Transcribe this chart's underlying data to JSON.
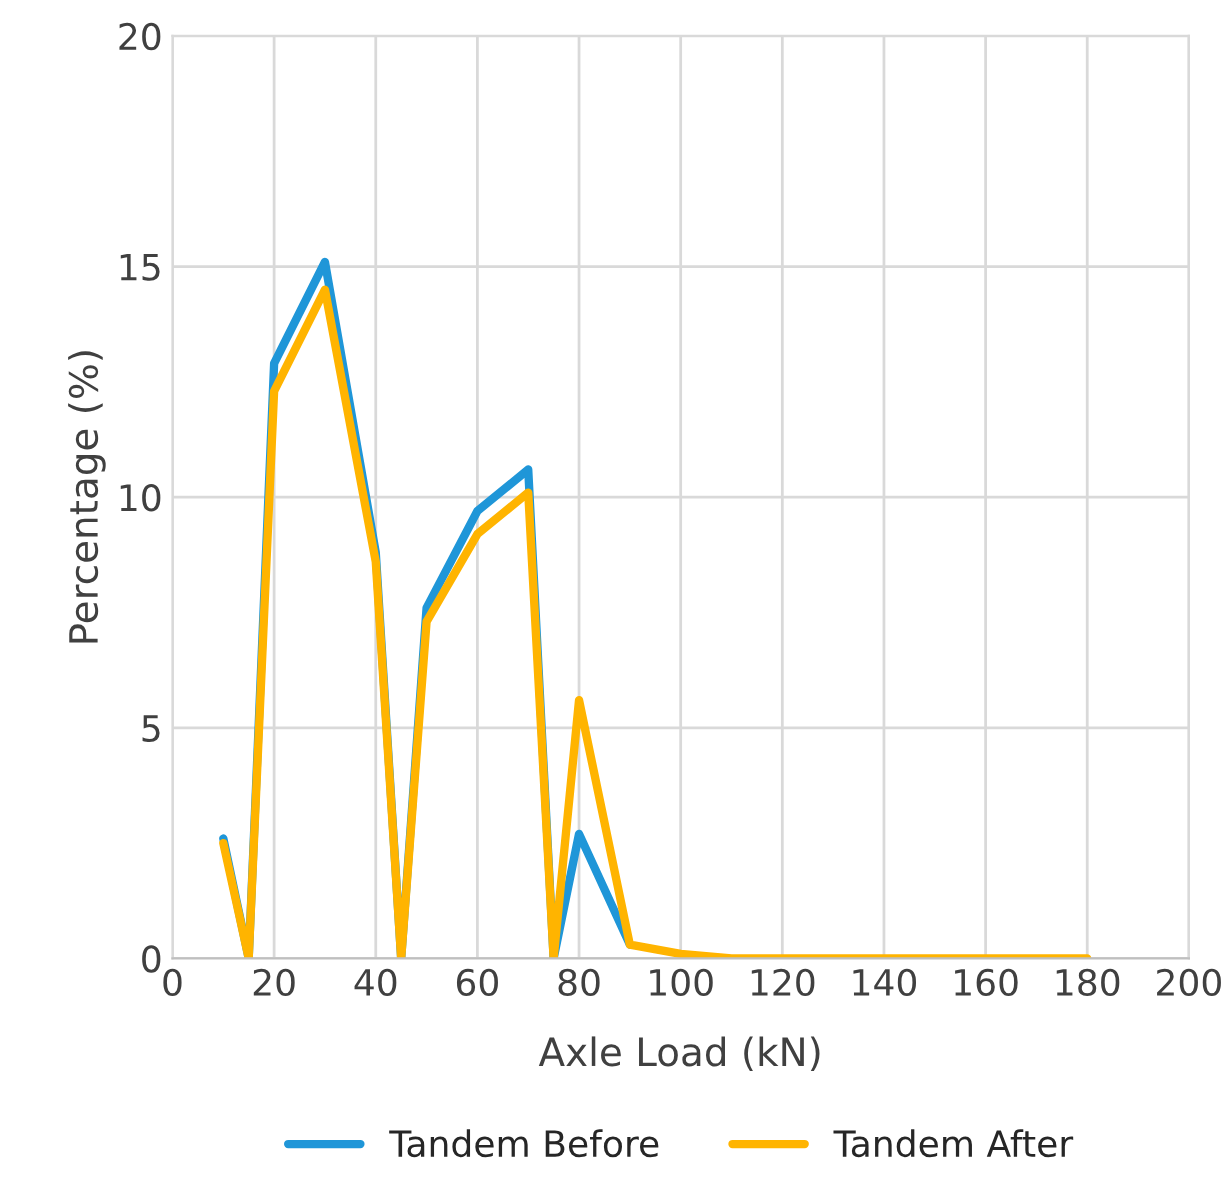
{
  "chart_data": {
    "type": "line",
    "xlabel": "Axle Load (kN)",
    "ylabel": "Percentage (%)",
    "x": [
      10,
      15,
      20,
      30,
      40,
      45,
      50,
      60,
      70,
      75,
      80,
      90,
      100,
      110,
      120,
      130,
      140,
      150,
      160,
      170,
      180
    ],
    "series": [
      {
        "name": "Tandem Before",
        "color": "#1f96d8",
        "values": [
          2.6,
          0,
          12.9,
          15.1,
          8.8,
          0,
          7.6,
          9.7,
          10.6,
          0,
          2.7,
          0.3,
          null,
          null,
          null,
          null,
          null,
          null,
          null,
          null,
          null
        ]
      },
      {
        "name": "Tandem After",
        "color": "#ffb400",
        "values": [
          2.5,
          0,
          12.3,
          14.5,
          8.6,
          0,
          7.3,
          9.2,
          10.1,
          0,
          5.6,
          0.3,
          0.1,
          0,
          0,
          0,
          0,
          0,
          0,
          0,
          0
        ]
      }
    ],
    "xlim": [
      0,
      200
    ],
    "xticks": [
      0,
      20,
      40,
      60,
      80,
      100,
      120,
      140,
      160,
      180,
      200
    ],
    "ylim": [
      0,
      20
    ],
    "yticks": [
      0,
      5,
      10,
      15,
      20
    ],
    "grid": true,
    "legend": "bottom",
    "marker": "none",
    "line_style": "solid"
  }
}
